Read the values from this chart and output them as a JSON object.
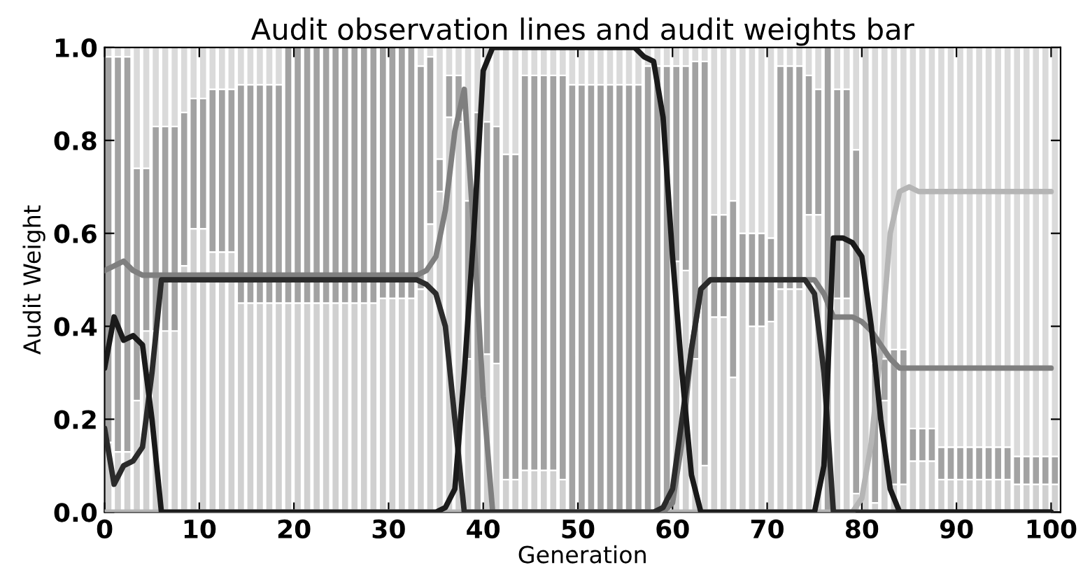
{
  "chart_data": {
    "type": "bar",
    "title": "Audit observation lines and audit weights bar",
    "xlabel": "Generation",
    "ylabel": "Audit Weight",
    "stacked": true,
    "x": [
      0,
      1,
      2,
      3,
      4,
      5,
      6,
      7,
      8,
      9,
      10,
      11,
      12,
      13,
      14,
      15,
      16,
      17,
      18,
      19,
      20,
      21,
      22,
      23,
      24,
      25,
      26,
      27,
      28,
      29,
      30,
      31,
      32,
      33,
      34,
      35,
      36,
      37,
      38,
      39,
      40,
      41,
      42,
      43,
      44,
      45,
      46,
      47,
      48,
      49,
      50,
      51,
      52,
      53,
      54,
      55,
      56,
      57,
      58,
      59,
      60,
      61,
      62,
      63,
      64,
      65,
      66,
      67,
      68,
      69,
      70,
      71,
      72,
      73,
      74,
      75,
      76,
      77,
      78,
      79,
      80,
      81,
      82,
      83,
      84,
      85,
      86,
      87,
      88,
      89,
      90,
      91,
      92,
      93,
      94,
      95,
      96,
      97,
      98,
      99,
      100
    ],
    "xlim": [
      0,
      101
    ],
    "ylim": [
      0,
      1
    ],
    "xticks": [
      0,
      10,
      20,
      30,
      40,
      50,
      60,
      70,
      80,
      90,
      100
    ],
    "yticks": [
      {
        "value": 0,
        "label": "0.0"
      },
      {
        "value": 0.2,
        "label": "0.2"
      },
      {
        "value": 0.4,
        "label": "0.4"
      },
      {
        "value": 0.6,
        "label": "0.6"
      },
      {
        "value": 0.8,
        "label": "0.8"
      },
      {
        "value": 1,
        "label": "1.0"
      }
    ],
    "grid": false,
    "series": [
      {
        "color": "#d0d0d0",
        "values": [
          0.15,
          0.13,
          0.13,
          0.24,
          0.39,
          0.39,
          0.39,
          0.39,
          0.53,
          0.61,
          0.61,
          0.56,
          0.56,
          0.56,
          0.45,
          0.45,
          0.45,
          0.45,
          0.45,
          0.45,
          0.45,
          0.45,
          0.45,
          0.45,
          0.45,
          0.45,
          0.45,
          0.45,
          0.45,
          0.46,
          0.46,
          0.46,
          0.46,
          0.48,
          0.62,
          0.69,
          0.85,
          0.84,
          0.33,
          0,
          0.34,
          0.32,
          0.07,
          0.07,
          0.09,
          0.09,
          0.09,
          0.09,
          0.07,
          0,
          0,
          0,
          0,
          0,
          0,
          0,
          0,
          0,
          0,
          0,
          0.54,
          0.52,
          0.33,
          0.1,
          0.42,
          0.42,
          0.29,
          0.5,
          0.4,
          0.4,
          0.41,
          0.48,
          0.48,
          0.48,
          0.64,
          0.64,
          0,
          0.46,
          0.46,
          0.04,
          1.0,
          0.02,
          0.24,
          0.06,
          0.06,
          0.11,
          0.11,
          0.11,
          0.07,
          0.07,
          0.07,
          0.07,
          0.07,
          0.07,
          0.07,
          0.07,
          0.06,
          0.06,
          0.06,
          0.06,
          0.06
        ]
      },
      {
        "color": "#a2a2a2",
        "values": [
          0.83,
          0.85,
          0.85,
          0.5,
          0.35,
          0.44,
          0.44,
          0.44,
          0.33,
          0.28,
          0.28,
          0.35,
          0.35,
          0.35,
          0.47,
          0.47,
          0.47,
          0.47,
          0.47,
          0.55,
          0.55,
          0.55,
          0.55,
          0.55,
          0.55,
          0.55,
          0.55,
          0.55,
          0.55,
          0.54,
          0.54,
          0.54,
          0.54,
          0.48,
          0.36,
          0.07,
          0.09,
          0.1,
          0.34,
          0.86,
          0.5,
          0.51,
          0.7,
          0.7,
          0.85,
          0.85,
          0.85,
          0.85,
          0.87,
          0.92,
          0.92,
          0.92,
          0.92,
          0.92,
          0.92,
          0.92,
          0.92,
          0.96,
          0.96,
          0.96,
          0.42,
          0.44,
          0.64,
          0.87,
          0.22,
          0.22,
          0.38,
          0.1,
          0.2,
          0.2,
          0.18,
          0.48,
          0.48,
          0.48,
          0.3,
          0.27,
          1.0,
          0.45,
          0.45,
          0.74,
          0,
          0.3,
          0.09,
          0.29,
          0.29,
          0.07,
          0.07,
          0.07,
          0.07,
          0.07,
          0.07,
          0.07,
          0.07,
          0.07,
          0.07,
          0.07,
          0.06,
          0.06,
          0.06,
          0.06,
          0.06
        ]
      },
      {
        "color": "#dadada",
        "values": [
          0.02,
          0.02,
          0.02,
          0.26,
          0.26,
          0.17,
          0.17,
          0.17,
          0.14,
          0.11,
          0.11,
          0.09,
          0.09,
          0.09,
          0.08,
          0.08,
          0.08,
          0.08,
          0.08,
          0,
          0,
          0,
          0,
          0,
          0,
          0,
          0,
          0,
          0,
          0,
          0,
          0,
          0,
          0.04,
          0.02,
          0.24,
          0.06,
          0.06,
          0.33,
          0.14,
          0.16,
          0.17,
          0.23,
          0.23,
          0.06,
          0.06,
          0.06,
          0.06,
          0.06,
          0.08,
          0.08,
          0.08,
          0.08,
          0.08,
          0.08,
          0.08,
          0.08,
          0.04,
          0.04,
          0.04,
          0.04,
          0.04,
          0.03,
          0.03,
          0.36,
          0.36,
          0.33,
          0.4,
          0.4,
          0.4,
          0.41,
          0.04,
          0.04,
          0.04,
          0.06,
          0.09,
          0,
          0.09,
          0.09,
          0.22,
          0,
          0.68,
          0.67,
          0.65,
          0.65,
          0.82,
          0.82,
          0.82,
          0.86,
          0.86,
          0.86,
          0.86,
          0.86,
          0.86,
          0.86,
          0.86,
          0.88,
          0.88,
          0.88,
          0.88,
          0.88
        ]
      },
      {
        "type": "line",
        "color": "#b5b5b5",
        "values": [
          0,
          0,
          0,
          0,
          0,
          0,
          0,
          0,
          0,
          0,
          0,
          0,
          0,
          0,
          0,
          0,
          0,
          0,
          0,
          0,
          0,
          0,
          0,
          0,
          0,
          0,
          0,
          0,
          0,
          0,
          0,
          0,
          0,
          0,
          0,
          0,
          0,
          0,
          0,
          0,
          0,
          0,
          0,
          0,
          0,
          0,
          0,
          0,
          0,
          0,
          0,
          0,
          0,
          0,
          0,
          0,
          0,
          0,
          0,
          0,
          0,
          0,
          0,
          0,
          0,
          0,
          0,
          0,
          0,
          0,
          0,
          0,
          0,
          0,
          0,
          0,
          0,
          0,
          0,
          0,
          0.03,
          0.15,
          0.35,
          0.6,
          0.69,
          0.7,
          0.69,
          0.69,
          0.69,
          0.69,
          0.69,
          0.69,
          0.69,
          0.69,
          0.69,
          0.69,
          0.69,
          0.69,
          0.69,
          0.69,
          0.69
        ]
      },
      {
        "type": "line",
        "color": "#7f7f7f",
        "values": [
          0.52,
          0.53,
          0.54,
          0.52,
          0.51,
          0.51,
          0.51,
          0.51,
          0.51,
          0.51,
          0.51,
          0.51,
          0.51,
          0.51,
          0.51,
          0.51,
          0.51,
          0.51,
          0.51,
          0.51,
          0.51,
          0.51,
          0.51,
          0.51,
          0.51,
          0.51,
          0.51,
          0.51,
          0.51,
          0.51,
          0.51,
          0.51,
          0.51,
          0.51,
          0.52,
          0.55,
          0.65,
          0.82,
          0.91,
          0.6,
          0.25,
          0,
          0,
          0,
          0,
          0,
          0,
          0,
          0,
          0,
          0,
          0,
          0,
          0,
          0,
          0,
          0,
          0,
          0,
          0,
          0.02,
          0.15,
          0.35,
          0.48,
          0.5,
          0.5,
          0.5,
          0.5,
          0.5,
          0.5,
          0.5,
          0.5,
          0.5,
          0.5,
          0.5,
          0.5,
          0.47,
          0.42,
          0.42,
          0.42,
          0.41,
          0.39,
          0.36,
          0.33,
          0.31,
          0.31,
          0.31,
          0.31,
          0.31,
          0.31,
          0.31,
          0.31,
          0.31,
          0.31,
          0.31,
          0.31,
          0.31,
          0.31,
          0.31,
          0.31,
          0.31
        ]
      },
      {
        "type": "line",
        "color": "#2b2b2b",
        "values": [
          0.18,
          0.06,
          0.1,
          0.11,
          0.14,
          0.3,
          0.5,
          0.5,
          0.5,
          0.5,
          0.5,
          0.5,
          0.5,
          0.5,
          0.5,
          0.5,
          0.5,
          0.5,
          0.5,
          0.5,
          0.5,
          0.5,
          0.5,
          0.5,
          0.5,
          0.5,
          0.5,
          0.5,
          0.5,
          0.5,
          0.5,
          0.5,
          0.5,
          0.5,
          0.49,
          0.47,
          0.4,
          0.2,
          0,
          0,
          0,
          0,
          0,
          0,
          0,
          0,
          0,
          0,
          0,
          0,
          0,
          0,
          0,
          0,
          0,
          0,
          0,
          0,
          0,
          0.01,
          0.05,
          0.2,
          0.35,
          0.48,
          0.5,
          0.5,
          0.5,
          0.5,
          0.5,
          0.5,
          0.5,
          0.5,
          0.5,
          0.5,
          0.5,
          0.47,
          0.3,
          0,
          0,
          0,
          0,
          0,
          0,
          0,
          0,
          0,
          0,
          0,
          0,
          0,
          0,
          0,
          0,
          0,
          0,
          0,
          0,
          0,
          0,
          0,
          0
        ]
      },
      {
        "type": "line",
        "color": "#1a1a1a",
        "values": [
          0.31,
          0.42,
          0.37,
          0.38,
          0.36,
          0.2,
          0,
          0,
          0,
          0,
          0,
          0,
          0,
          0,
          0,
          0,
          0,
          0,
          0,
          0,
          0,
          0,
          0,
          0,
          0,
          0,
          0,
          0,
          0,
          0,
          0,
          0,
          0,
          0,
          0,
          0,
          0.01,
          0.05,
          0.3,
          0.6,
          0.95,
          1.0,
          1.0,
          1.0,
          1.0,
          1.0,
          1.0,
          1.0,
          1.0,
          1.0,
          1.0,
          1.0,
          1.0,
          1.0,
          1.0,
          1.0,
          1.0,
          0.98,
          0.97,
          0.85,
          0.55,
          0.3,
          0.08,
          0,
          0,
          0,
          0,
          0,
          0,
          0,
          0,
          0,
          0,
          0,
          0,
          0,
          0.1,
          0.59,
          0.59,
          0.58,
          0.55,
          0.4,
          0.2,
          0.05,
          0,
          0,
          0,
          0,
          0,
          0,
          0,
          0,
          0,
          0,
          0,
          0,
          0,
          0,
          0,
          0,
          0
        ]
      }
    ]
  }
}
